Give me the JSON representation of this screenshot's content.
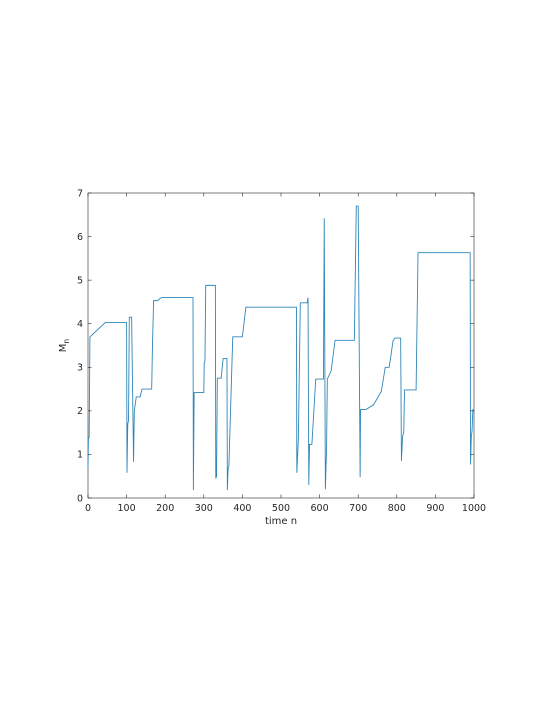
{
  "chart_data": {
    "type": "line",
    "title": "",
    "xlabel": "time n",
    "ylabel": {
      "main": "M",
      "sub": "n"
    },
    "xlim": [
      0,
      1000
    ],
    "ylim": [
      0,
      7
    ],
    "xticks": [
      "0",
      "100",
      "200",
      "300",
      "400",
      "500",
      "600",
      "700",
      "800",
      "900",
      "1000"
    ],
    "yticks": [
      "0",
      "1",
      "2",
      "3",
      "4",
      "5",
      "6",
      "7"
    ],
    "grid": false,
    "legend": "none",
    "line_color": "#2f86b8",
    "axis_color": "#262626",
    "series": [
      {
        "x": [
          0,
          1,
          3,
          5,
          9,
          45,
          100,
          101,
          103,
          105,
          107,
          113,
          118,
          120,
          125,
          135,
          140,
          165,
          167,
          170,
          180,
          190,
          272,
          273,
          275,
          285,
          300,
          301,
          303,
          305,
          313,
          330,
          331,
          333,
          335,
          345,
          350,
          360,
          361,
          363,
          365,
          375,
          380,
          400,
          409,
          420,
          540,
          541,
          545,
          550,
          555,
          568,
          570,
          572,
          574,
          580,
          590,
          600,
          610,
          612,
          615,
          618,
          620,
          630,
          640,
          650,
          660,
          690,
          695,
          700,
          705,
          706,
          710,
          720,
          740,
          760,
          770,
          780,
          785,
          790,
          795,
          800,
          810,
          812,
          815,
          818,
          820,
          825,
          830,
          850,
          855,
          900,
          990,
          991,
          993,
          995,
          997,
          1000
        ],
        "y": [
          0.7,
          1.35,
          1.4,
          3.7,
          3.73,
          4.03,
          4.03,
          0.58,
          1.7,
          1.78,
          4.15,
          4.15,
          0.83,
          2.0,
          2.32,
          2.32,
          2.5,
          2.5,
          3.5,
          4.53,
          4.53,
          4.6,
          4.6,
          0.18,
          2.42,
          2.42,
          2.42,
          3.1,
          3.15,
          4.88,
          4.88,
          4.88,
          0.45,
          0.5,
          2.75,
          2.75,
          3.2,
          3.2,
          0.18,
          0.68,
          0.73,
          3.7,
          3.7,
          3.7,
          4.38,
          4.38,
          4.38,
          0.58,
          1.37,
          4.48,
          4.48,
          4.48,
          4.6,
          0.3,
          1.23,
          1.23,
          2.73,
          2.73,
          2.73,
          6.42,
          0.2,
          1.12,
          2.73,
          2.92,
          3.62,
          3.62,
          3.62,
          3.62,
          6.7,
          6.7,
          0.48,
          2.03,
          2.03,
          2.03,
          2.14,
          2.45,
          3.0,
          3.0,
          3.28,
          3.6,
          3.67,
          3.67,
          3.67,
          0.85,
          1.42,
          1.5,
          2.48,
          2.48,
          2.48,
          2.48,
          5.63,
          5.63,
          5.63,
          0.77,
          1.4,
          1.55,
          2.02,
          2.02
        ]
      }
    ]
  }
}
